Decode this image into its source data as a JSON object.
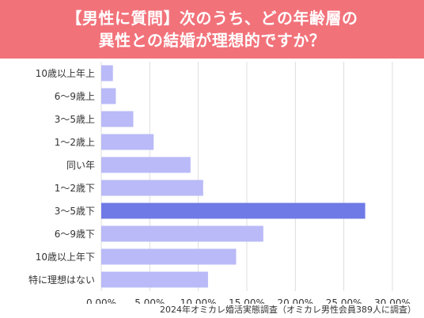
{
  "header": {
    "title_line1": "【男性に質問】次のうち、どの年齢層の",
    "title_line2": "異性との結婚が理想的ですか？"
  },
  "source_note": "2024年オミカレ婚活実態調査（オミカレ男性会員389人に調査）",
  "colors": {
    "banner": "#f2727a",
    "bar": "#b9baf7",
    "bar_highlight": "#6f7ae6",
    "grid": "#dddddd"
  },
  "chart_data": {
    "type": "bar",
    "orientation": "horizontal",
    "title": "",
    "xlabel": "",
    "ylabel": "",
    "categories": [
      "10歳以上年上",
      "6〜9歳上",
      "3〜5歳上",
      "1〜2歳上",
      "同い年",
      "1〜2歳下",
      "3〜5歳下",
      "6〜9歳下",
      "10歳以上年下",
      "特に理想はない"
    ],
    "values": [
      0.012,
      0.015,
      0.033,
      0.054,
      0.092,
      0.105,
      0.272,
      0.167,
      0.139,
      0.11
    ],
    "highlight_index": 6,
    "xlim": [
      0,
      0.3
    ],
    "xticks": [
      0,
      0.05,
      0.1,
      0.15,
      0.2,
      0.25,
      0.3
    ],
    "xtick_labels": [
      "0.00%",
      "5.00%",
      "10.00%",
      "15.00%",
      "20.00%",
      "25.00%",
      "30.00%"
    ],
    "grid": true,
    "legend": "none"
  }
}
